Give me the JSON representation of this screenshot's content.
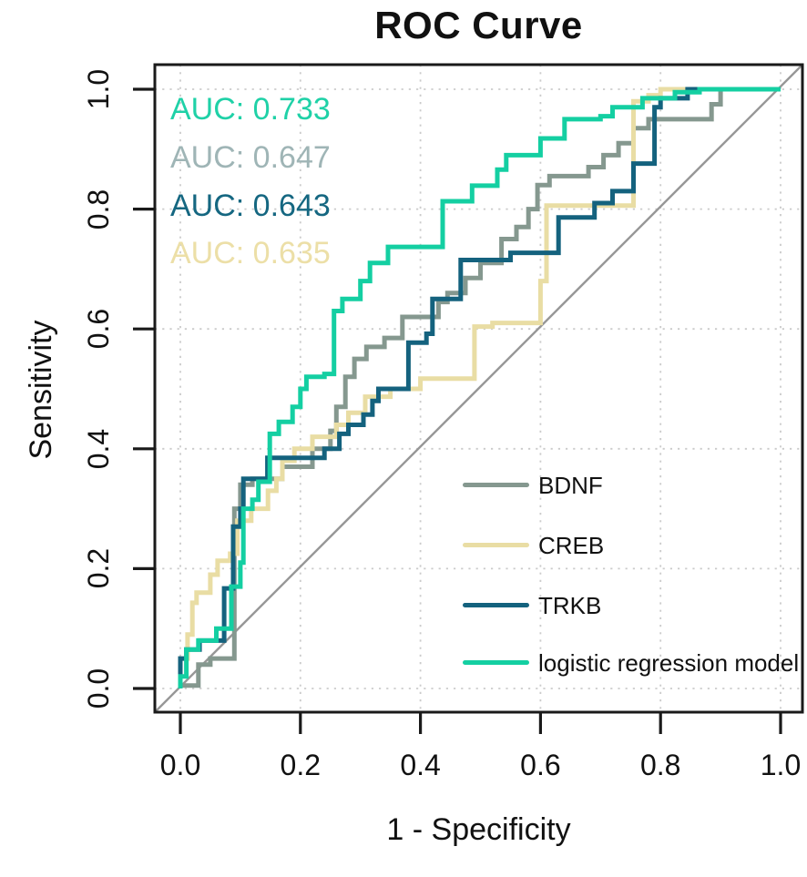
{
  "figure": {
    "title": "ROC Curve",
    "xlabel": "1 - Specificity",
    "ylabel": "Sensitivity"
  },
  "chart_data": {
    "type": "line",
    "subtype": "roc-step-curves",
    "title": "ROC Curve",
    "xlabel": "1 - Specificity",
    "ylabel": "Sensitivity",
    "xlim": [
      0,
      1
    ],
    "ylim": [
      0,
      1
    ],
    "xticks": [
      0.0,
      0.2,
      0.4,
      0.6,
      0.8,
      1.0
    ],
    "yticks": [
      0.0,
      0.2,
      0.4,
      0.6,
      0.8,
      1.0
    ],
    "xtick_labels": [
      "0.0",
      "0.2",
      "0.4",
      "0.6",
      "0.8",
      "1.0"
    ],
    "ytick_labels": [
      "0.0",
      "0.2",
      "0.4",
      "0.6",
      "0.8",
      "1.0"
    ],
    "grid": "dotted",
    "grid_color": "#cbcbcb",
    "axis_color": "#1a1a1a",
    "reference_line": {
      "from": [
        0,
        0
      ],
      "to": [
        1,
        1
      ],
      "color": "#979797"
    },
    "auc_labels": [
      {
        "text": "AUC: 0.733",
        "value": 0.733,
        "series": "logistic regression model",
        "color": "#1fd1a7"
      },
      {
        "text": "AUC: 0.647",
        "value": 0.647,
        "series": "BDNF",
        "color": "#9fb5b6"
      },
      {
        "text": "AUC: 0.643",
        "value": 0.643,
        "series": "TRKB",
        "color": "#156781"
      },
      {
        "text": "AUC: 0.635",
        "value": 0.635,
        "series": "CREB",
        "color": "#ecdfa7"
      }
    ],
    "legend": {
      "position": "bottom-right",
      "entries": [
        "BDNF",
        "CREB",
        "TRKB",
        "logistic regression model"
      ]
    },
    "series": [
      {
        "name": "BDNF",
        "color": "#85988f",
        "auc": 0.647,
        "points": [
          [
            0,
            0
          ],
          [
            0,
            0.005
          ],
          [
            0.03,
            0.005
          ],
          [
            0.03,
            0.04
          ],
          [
            0.05,
            0.04
          ],
          [
            0.05,
            0.05
          ],
          [
            0.09,
            0.05
          ],
          [
            0.09,
            0.3
          ],
          [
            0.1,
            0.3
          ],
          [
            0.1,
            0.34
          ],
          [
            0.12,
            0.34
          ],
          [
            0.12,
            0.35
          ],
          [
            0.17,
            0.35
          ],
          [
            0.17,
            0.37
          ],
          [
            0.22,
            0.37
          ],
          [
            0.22,
            0.4
          ],
          [
            0.25,
            0.4
          ],
          [
            0.25,
            0.43
          ],
          [
            0.26,
            0.43
          ],
          [
            0.26,
            0.47
          ],
          [
            0.275,
            0.47
          ],
          [
            0.275,
            0.52
          ],
          [
            0.29,
            0.52
          ],
          [
            0.29,
            0.55
          ],
          [
            0.31,
            0.55
          ],
          [
            0.31,
            0.57
          ],
          [
            0.34,
            0.57
          ],
          [
            0.34,
            0.585
          ],
          [
            0.37,
            0.585
          ],
          [
            0.37,
            0.62
          ],
          [
            0.43,
            0.62
          ],
          [
            0.43,
            0.645
          ],
          [
            0.445,
            0.645
          ],
          [
            0.445,
            0.66
          ],
          [
            0.475,
            0.66
          ],
          [
            0.475,
            0.685
          ],
          [
            0.5,
            0.685
          ],
          [
            0.5,
            0.71
          ],
          [
            0.535,
            0.71
          ],
          [
            0.535,
            0.75
          ],
          [
            0.56,
            0.75
          ],
          [
            0.56,
            0.77
          ],
          [
            0.58,
            0.77
          ],
          [
            0.58,
            0.8
          ],
          [
            0.595,
            0.8
          ],
          [
            0.595,
            0.84
          ],
          [
            0.615,
            0.84
          ],
          [
            0.615,
            0.855
          ],
          [
            0.68,
            0.855
          ],
          [
            0.68,
            0.87
          ],
          [
            0.705,
            0.87
          ],
          [
            0.705,
            0.89
          ],
          [
            0.73,
            0.89
          ],
          [
            0.73,
            0.91
          ],
          [
            0.755,
            0.91
          ],
          [
            0.755,
            0.935
          ],
          [
            0.78,
            0.935
          ],
          [
            0.78,
            0.95
          ],
          [
            0.885,
            0.95
          ],
          [
            0.885,
            0.975
          ],
          [
            0.9,
            0.975
          ],
          [
            0.9,
            1
          ],
          [
            1,
            1
          ]
        ]
      },
      {
        "name": "CREB",
        "color": "#e9dda4",
        "auc": 0.635,
        "points": [
          [
            0,
            0
          ],
          [
            0,
            0.05
          ],
          [
            0.012,
            0.05
          ],
          [
            0.012,
            0.09
          ],
          [
            0.02,
            0.09
          ],
          [
            0.02,
            0.143
          ],
          [
            0.027,
            0.143
          ],
          [
            0.027,
            0.16
          ],
          [
            0.05,
            0.16
          ],
          [
            0.05,
            0.19
          ],
          [
            0.062,
            0.19
          ],
          [
            0.062,
            0.213
          ],
          [
            0.083,
            0.213
          ],
          [
            0.083,
            0.225
          ],
          [
            0.095,
            0.225
          ],
          [
            0.095,
            0.28
          ],
          [
            0.118,
            0.28
          ],
          [
            0.118,
            0.3
          ],
          [
            0.146,
            0.3
          ],
          [
            0.146,
            0.33
          ],
          [
            0.16,
            0.33
          ],
          [
            0.16,
            0.35
          ],
          [
            0.17,
            0.35
          ],
          [
            0.17,
            0.38
          ],
          [
            0.19,
            0.38
          ],
          [
            0.19,
            0.4
          ],
          [
            0.22,
            0.4
          ],
          [
            0.22,
            0.42
          ],
          [
            0.26,
            0.42
          ],
          [
            0.26,
            0.44
          ],
          [
            0.28,
            0.44
          ],
          [
            0.28,
            0.46
          ],
          [
            0.308,
            0.46
          ],
          [
            0.308,
            0.487
          ],
          [
            0.35,
            0.487
          ],
          [
            0.35,
            0.5
          ],
          [
            0.4,
            0.5
          ],
          [
            0.4,
            0.517
          ],
          [
            0.49,
            0.517
          ],
          [
            0.49,
            0.604
          ],
          [
            0.52,
            0.604
          ],
          [
            0.52,
            0.61
          ],
          [
            0.6,
            0.61
          ],
          [
            0.6,
            0.68
          ],
          [
            0.61,
            0.68
          ],
          [
            0.61,
            0.806
          ],
          [
            0.755,
            0.806
          ],
          [
            0.755,
            0.98
          ],
          [
            0.78,
            0.98
          ],
          [
            0.78,
            0.99
          ],
          [
            0.8,
            0.99
          ],
          [
            0.8,
            1
          ],
          [
            1,
            1
          ]
        ]
      },
      {
        "name": "TRKB",
        "color": "#14627e",
        "auc": 0.643,
        "points": [
          [
            0,
            0
          ],
          [
            0,
            0.05
          ],
          [
            0.01,
            0.05
          ],
          [
            0.01,
            0.065
          ],
          [
            0.032,
            0.065
          ],
          [
            0.032,
            0.08
          ],
          [
            0.073,
            0.08
          ],
          [
            0.073,
            0.167
          ],
          [
            0.088,
            0.167
          ],
          [
            0.088,
            0.27
          ],
          [
            0.1,
            0.27
          ],
          [
            0.1,
            0.3
          ],
          [
            0.105,
            0.3
          ],
          [
            0.105,
            0.35
          ],
          [
            0.145,
            0.35
          ],
          [
            0.145,
            0.385
          ],
          [
            0.24,
            0.385
          ],
          [
            0.24,
            0.4
          ],
          [
            0.265,
            0.4
          ],
          [
            0.265,
            0.425
          ],
          [
            0.28,
            0.425
          ],
          [
            0.28,
            0.44
          ],
          [
            0.305,
            0.44
          ],
          [
            0.305,
            0.457
          ],
          [
            0.32,
            0.457
          ],
          [
            0.32,
            0.48
          ],
          [
            0.33,
            0.48
          ],
          [
            0.33,
            0.5
          ],
          [
            0.38,
            0.5
          ],
          [
            0.38,
            0.577
          ],
          [
            0.41,
            0.577
          ],
          [
            0.41,
            0.592
          ],
          [
            0.42,
            0.592
          ],
          [
            0.42,
            0.65
          ],
          [
            0.467,
            0.65
          ],
          [
            0.467,
            0.715
          ],
          [
            0.55,
            0.715
          ],
          [
            0.55,
            0.727
          ],
          [
            0.63,
            0.727
          ],
          [
            0.63,
            0.786
          ],
          [
            0.69,
            0.786
          ],
          [
            0.69,
            0.81
          ],
          [
            0.72,
            0.81
          ],
          [
            0.72,
            0.83
          ],
          [
            0.755,
            0.83
          ],
          [
            0.755,
            0.876
          ],
          [
            0.79,
            0.876
          ],
          [
            0.79,
            0.97
          ],
          [
            0.8,
            0.97
          ],
          [
            0.8,
            0.985
          ],
          [
            0.845,
            0.985
          ],
          [
            0.845,
            1
          ],
          [
            1,
            1
          ]
        ]
      },
      {
        "name": "logistic regression model",
        "color": "#14cfa2",
        "auc": 0.733,
        "points": [
          [
            0,
            0
          ],
          [
            0,
            0.02
          ],
          [
            0.01,
            0.02
          ],
          [
            0.01,
            0.065
          ],
          [
            0.03,
            0.065
          ],
          [
            0.03,
            0.08
          ],
          [
            0.06,
            0.08
          ],
          [
            0.06,
            0.1
          ],
          [
            0.085,
            0.1
          ],
          [
            0.085,
            0.17
          ],
          [
            0.1,
            0.17
          ],
          [
            0.1,
            0.21
          ],
          [
            0.105,
            0.21
          ],
          [
            0.105,
            0.3
          ],
          [
            0.12,
            0.3
          ],
          [
            0.12,
            0.315
          ],
          [
            0.13,
            0.315
          ],
          [
            0.13,
            0.345
          ],
          [
            0.149,
            0.345
          ],
          [
            0.149,
            0.425
          ],
          [
            0.164,
            0.425
          ],
          [
            0.164,
            0.445
          ],
          [
            0.187,
            0.445
          ],
          [
            0.187,
            0.47
          ],
          [
            0.2,
            0.47
          ],
          [
            0.2,
            0.5
          ],
          [
            0.21,
            0.5
          ],
          [
            0.21,
            0.52
          ],
          [
            0.24,
            0.52
          ],
          [
            0.24,
            0.525
          ],
          [
            0.256,
            0.525
          ],
          [
            0.256,
            0.63
          ],
          [
            0.27,
            0.63
          ],
          [
            0.27,
            0.65
          ],
          [
            0.3,
            0.65
          ],
          [
            0.3,
            0.68
          ],
          [
            0.316,
            0.68
          ],
          [
            0.316,
            0.71
          ],
          [
            0.346,
            0.71
          ],
          [
            0.346,
            0.737
          ],
          [
            0.437,
            0.737
          ],
          [
            0.437,
            0.813
          ],
          [
            0.486,
            0.813
          ],
          [
            0.486,
            0.839
          ],
          [
            0.528,
            0.839
          ],
          [
            0.528,
            0.866
          ],
          [
            0.543,
            0.866
          ],
          [
            0.543,
            0.89
          ],
          [
            0.6,
            0.89
          ],
          [
            0.6,
            0.918
          ],
          [
            0.64,
            0.918
          ],
          [
            0.64,
            0.95
          ],
          [
            0.7,
            0.95
          ],
          [
            0.7,
            0.955
          ],
          [
            0.72,
            0.955
          ],
          [
            0.72,
            0.97
          ],
          [
            0.77,
            0.97
          ],
          [
            0.77,
            0.985
          ],
          [
            0.824,
            0.985
          ],
          [
            0.824,
            0.995
          ],
          [
            0.865,
            0.995
          ],
          [
            0.865,
            1
          ],
          [
            1,
            1
          ]
        ]
      }
    ]
  }
}
